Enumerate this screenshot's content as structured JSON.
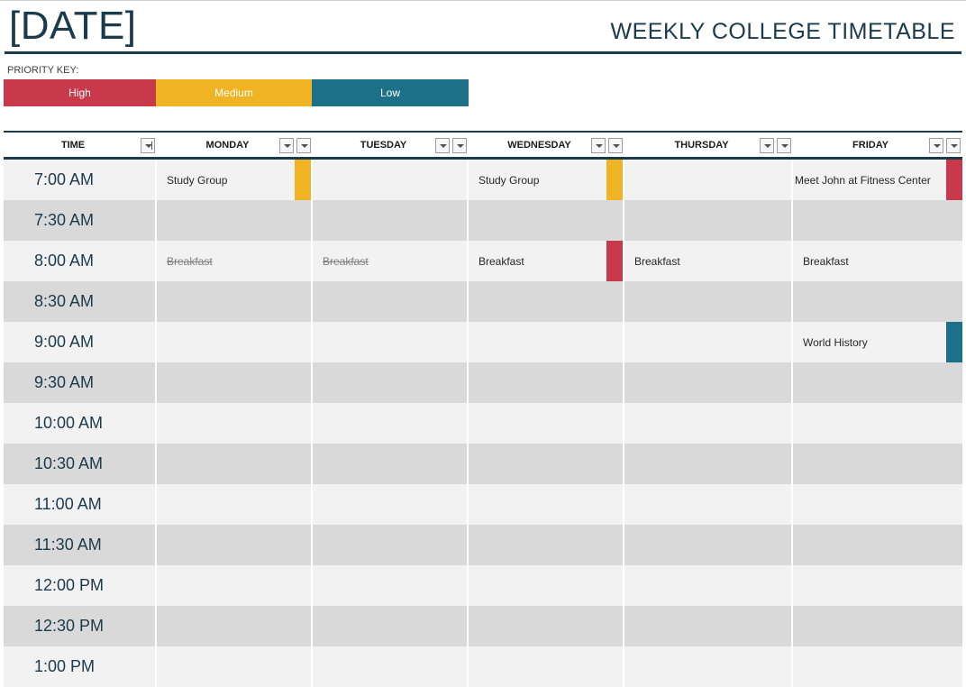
{
  "header": {
    "date": "[DATE]",
    "title": "WEEKLY COLLEGE TIMETABLE"
  },
  "priority_key": {
    "label": "PRIORITY KEY:",
    "items": [
      {
        "label": "High",
        "color": "#c8394c"
      },
      {
        "label": "Medium",
        "color": "#f0b323"
      },
      {
        "label": "Low",
        "color": "#1c7189"
      }
    ]
  },
  "colors": {
    "accent": "#1b3a4b",
    "row_light": "#f2f2f2",
    "row_dark": "#d9d9d9",
    "high": "#c8394c",
    "medium": "#f0b323",
    "low": "#1c7189"
  },
  "table": {
    "columns": [
      "TIME",
      "MONDAY",
      "TUESDAY",
      "WEDNESDAY",
      "THURSDAY",
      "FRIDAY"
    ],
    "rows": [
      {
        "time": "7:00 AM",
        "cells": [
          {
            "text": "Study Group",
            "priority": "medium"
          },
          {
            "text": ""
          },
          {
            "text": "Study Group",
            "priority": "medium"
          },
          {
            "text": ""
          },
          {
            "text": "Meet John at Fitness Center",
            "priority": "high"
          }
        ]
      },
      {
        "time": "7:30 AM",
        "cells": [
          {
            "text": ""
          },
          {
            "text": ""
          },
          {
            "text": ""
          },
          {
            "text": ""
          },
          {
            "text": ""
          }
        ]
      },
      {
        "time": "8:00 AM",
        "cells": [
          {
            "text": "Breakfast",
            "done": true
          },
          {
            "text": "Breakfast",
            "done": true
          },
          {
            "text": "Breakfast",
            "priority": "high"
          },
          {
            "text": "Breakfast"
          },
          {
            "text": "Breakfast"
          }
        ]
      },
      {
        "time": "8:30 AM",
        "cells": [
          {
            "text": ""
          },
          {
            "text": ""
          },
          {
            "text": ""
          },
          {
            "text": ""
          },
          {
            "text": ""
          }
        ]
      },
      {
        "time": "9:00 AM",
        "cells": [
          {
            "text": ""
          },
          {
            "text": ""
          },
          {
            "text": ""
          },
          {
            "text": ""
          },
          {
            "text": "World History",
            "priority": "low"
          }
        ]
      },
      {
        "time": "9:30 AM",
        "cells": [
          {
            "text": ""
          },
          {
            "text": ""
          },
          {
            "text": ""
          },
          {
            "text": ""
          },
          {
            "text": ""
          }
        ]
      },
      {
        "time": "10:00 AM",
        "cells": [
          {
            "text": ""
          },
          {
            "text": ""
          },
          {
            "text": ""
          },
          {
            "text": ""
          },
          {
            "text": ""
          }
        ]
      },
      {
        "time": "10:30 AM",
        "cells": [
          {
            "text": ""
          },
          {
            "text": ""
          },
          {
            "text": ""
          },
          {
            "text": ""
          },
          {
            "text": ""
          }
        ]
      },
      {
        "time": "11:00 AM",
        "cells": [
          {
            "text": ""
          },
          {
            "text": ""
          },
          {
            "text": ""
          },
          {
            "text": ""
          },
          {
            "text": ""
          }
        ]
      },
      {
        "time": "11:30 AM",
        "cells": [
          {
            "text": ""
          },
          {
            "text": ""
          },
          {
            "text": ""
          },
          {
            "text": ""
          },
          {
            "text": ""
          }
        ]
      },
      {
        "time": "12:00 PM",
        "cells": [
          {
            "text": ""
          },
          {
            "text": ""
          },
          {
            "text": ""
          },
          {
            "text": ""
          },
          {
            "text": ""
          }
        ]
      },
      {
        "time": "12:30 PM",
        "cells": [
          {
            "text": ""
          },
          {
            "text": ""
          },
          {
            "text": ""
          },
          {
            "text": ""
          },
          {
            "text": ""
          }
        ]
      },
      {
        "time": "1:00 PM",
        "cells": [
          {
            "text": ""
          },
          {
            "text": ""
          },
          {
            "text": ""
          },
          {
            "text": ""
          },
          {
            "text": ""
          }
        ]
      }
    ]
  }
}
